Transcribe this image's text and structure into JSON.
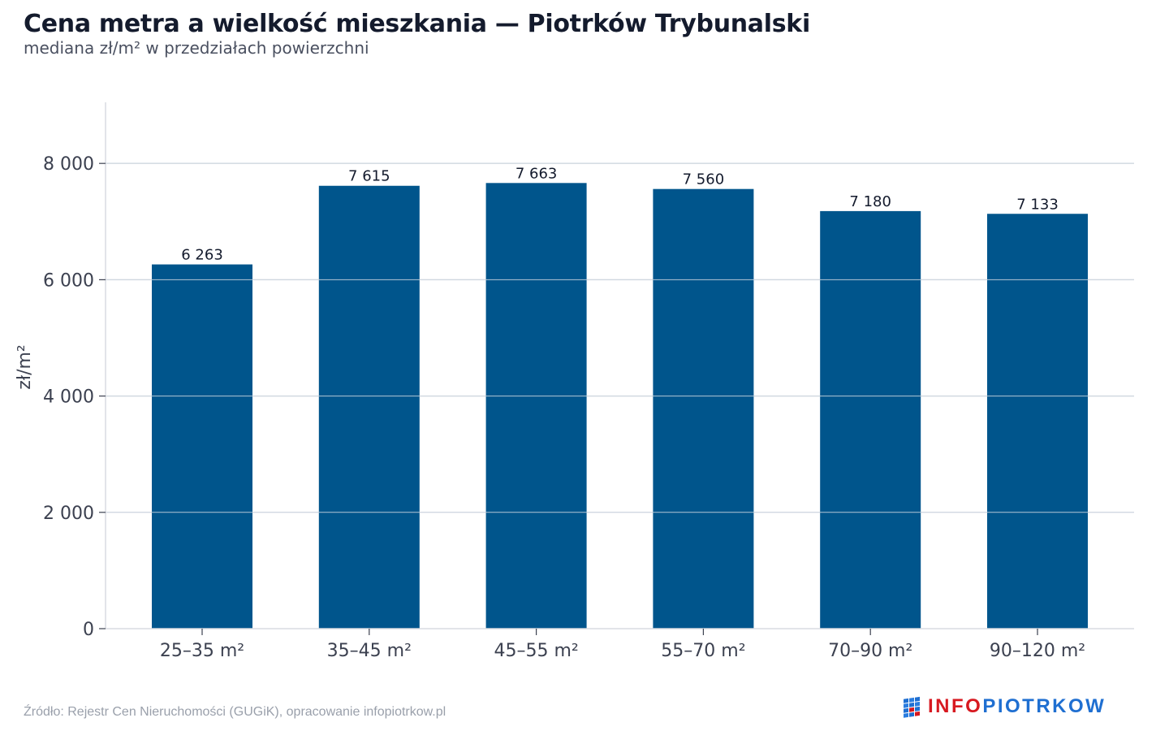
{
  "header": {
    "title": "Cena metra a wielkość mieszkania — Piotrków Trybunalski",
    "subtitle": "mediana zł/m² w przedziałach powierzchni"
  },
  "footer": {
    "source": "Źródło: Rejestr Cen Nieruchomości (GUGiK), opracowanie infopiotrkow.pl",
    "logo_part1": "INFO",
    "logo_part2": "PIOTRKOW"
  },
  "colors": {
    "bar": "#00558c",
    "grid": "#e3e5e9",
    "axis_text": "#3c4150",
    "label_text": "#141b2d",
    "logo_red": "#d71920",
    "logo_blue": "#1f6fd1"
  },
  "chart_data": {
    "type": "bar",
    "title": "Cena metra a wielkość mieszkania — Piotrków Trybunalski",
    "subtitle": "mediana zł/m² w przedziałach powierzchni",
    "xlabel": "",
    "ylabel": "zł/m²",
    "categories": [
      "25–35 m²",
      "35–45 m²",
      "45–55 m²",
      "55–70 m²",
      "70–90 m²",
      "90–120 m²"
    ],
    "values": [
      6263,
      7615,
      7663,
      7560,
      7180,
      7133
    ],
    "value_labels": [
      "6 263",
      "7 615",
      "7 663",
      "7 560",
      "7 180",
      "7 133"
    ],
    "yticks": [
      0,
      2000,
      4000,
      6000,
      8000
    ],
    "ytick_labels": [
      "0",
      "2 000",
      "4 000",
      "6 000",
      "8 000"
    ],
    "ylim": [
      0,
      9050
    ],
    "grid": true,
    "legend": "none"
  }
}
